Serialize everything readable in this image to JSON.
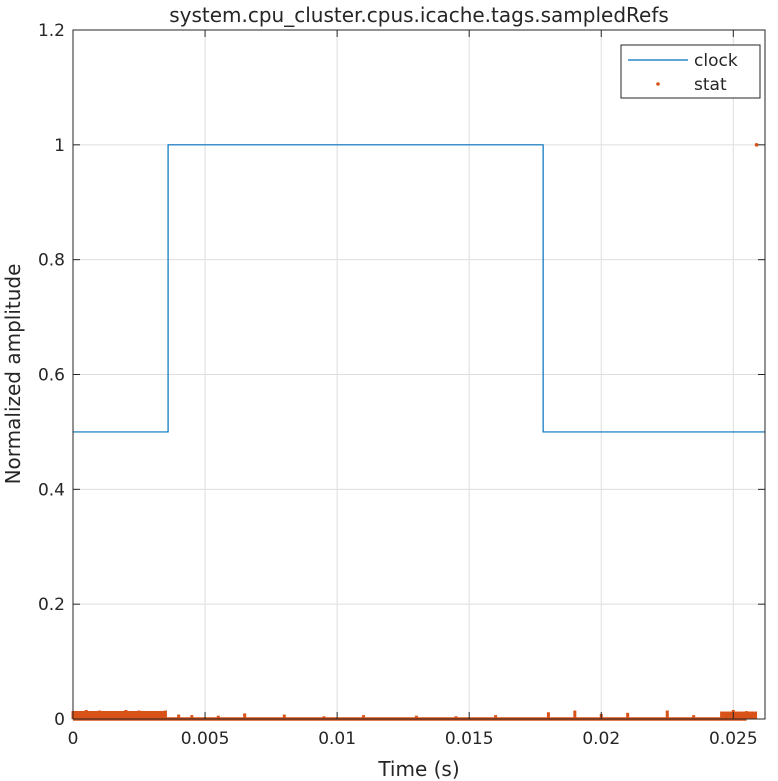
{
  "chart_data": {
    "type": "line",
    "title": "system.cpu_cluster.cpus.icache.tags.sampledRefs",
    "xlabel": "Time (s)",
    "ylabel": "Normalized amplitude",
    "xlim": [
      0,
      0.0262
    ],
    "ylim": [
      0,
      1.2
    ],
    "xticks": [
      0,
      0.005,
      0.01,
      0.015,
      0.02,
      0.025
    ],
    "xtick_labels": [
      "0",
      "0.005",
      "0.01",
      "0.015",
      "0.02",
      "0.025"
    ],
    "yticks": [
      0,
      0.2,
      0.4,
      0.6,
      0.8,
      1,
      1.2
    ],
    "ytick_labels": [
      "0",
      "0.2",
      "0.4",
      "0.6",
      "0.8",
      "1",
      "1.2"
    ],
    "grid": true,
    "legend_position": "top-right",
    "series": [
      {
        "name": "clock",
        "style": "line",
        "color": "#0072BD",
        "x": [
          0,
          0.0036,
          0.0036,
          0.0178,
          0.0178,
          0.0262
        ],
        "y": [
          0.5,
          0.5,
          1.0,
          1.0,
          0.5,
          0.5
        ]
      },
      {
        "name": "stat",
        "style": "markers",
        "color": "#D95319",
        "x": [
          0.0,
          0.0005,
          0.001,
          0.0015,
          0.002,
          0.0025,
          0.003,
          0.0035,
          0.004,
          0.0045,
          0.005,
          0.0055,
          0.006,
          0.0065,
          0.007,
          0.0075,
          0.008,
          0.0085,
          0.009,
          0.0095,
          0.01,
          0.0105,
          0.011,
          0.0115,
          0.012,
          0.0125,
          0.013,
          0.0135,
          0.014,
          0.0145,
          0.015,
          0.0155,
          0.016,
          0.0165,
          0.017,
          0.0175,
          0.018,
          0.0185,
          0.019,
          0.0195,
          0.02,
          0.0205,
          0.021,
          0.0215,
          0.022,
          0.0225,
          0.023,
          0.0235,
          0.024,
          0.0245,
          0.025,
          0.0255,
          0.02588
        ],
        "y": [
          0.012,
          0.014,
          0.013,
          0.012,
          0.014,
          0.013,
          0.012,
          0.013,
          0.006,
          0.005,
          0.0,
          0.004,
          0.0,
          0.008,
          0.0,
          0.0,
          0.006,
          0.0,
          0.0,
          0.003,
          0.0,
          0.0,
          0.005,
          0.0,
          0.0,
          0.0,
          0.004,
          0.0,
          0.0,
          0.003,
          0.0,
          0.0,
          0.005,
          0.0,
          0.0,
          0.0,
          0.01,
          0.0,
          0.013,
          0.0,
          0.007,
          0.0,
          0.009,
          0.0,
          0.0,
          0.013,
          0.0,
          0.005,
          0.0,
          0.0,
          0.014,
          0.012,
          1.0
        ]
      }
    ]
  }
}
